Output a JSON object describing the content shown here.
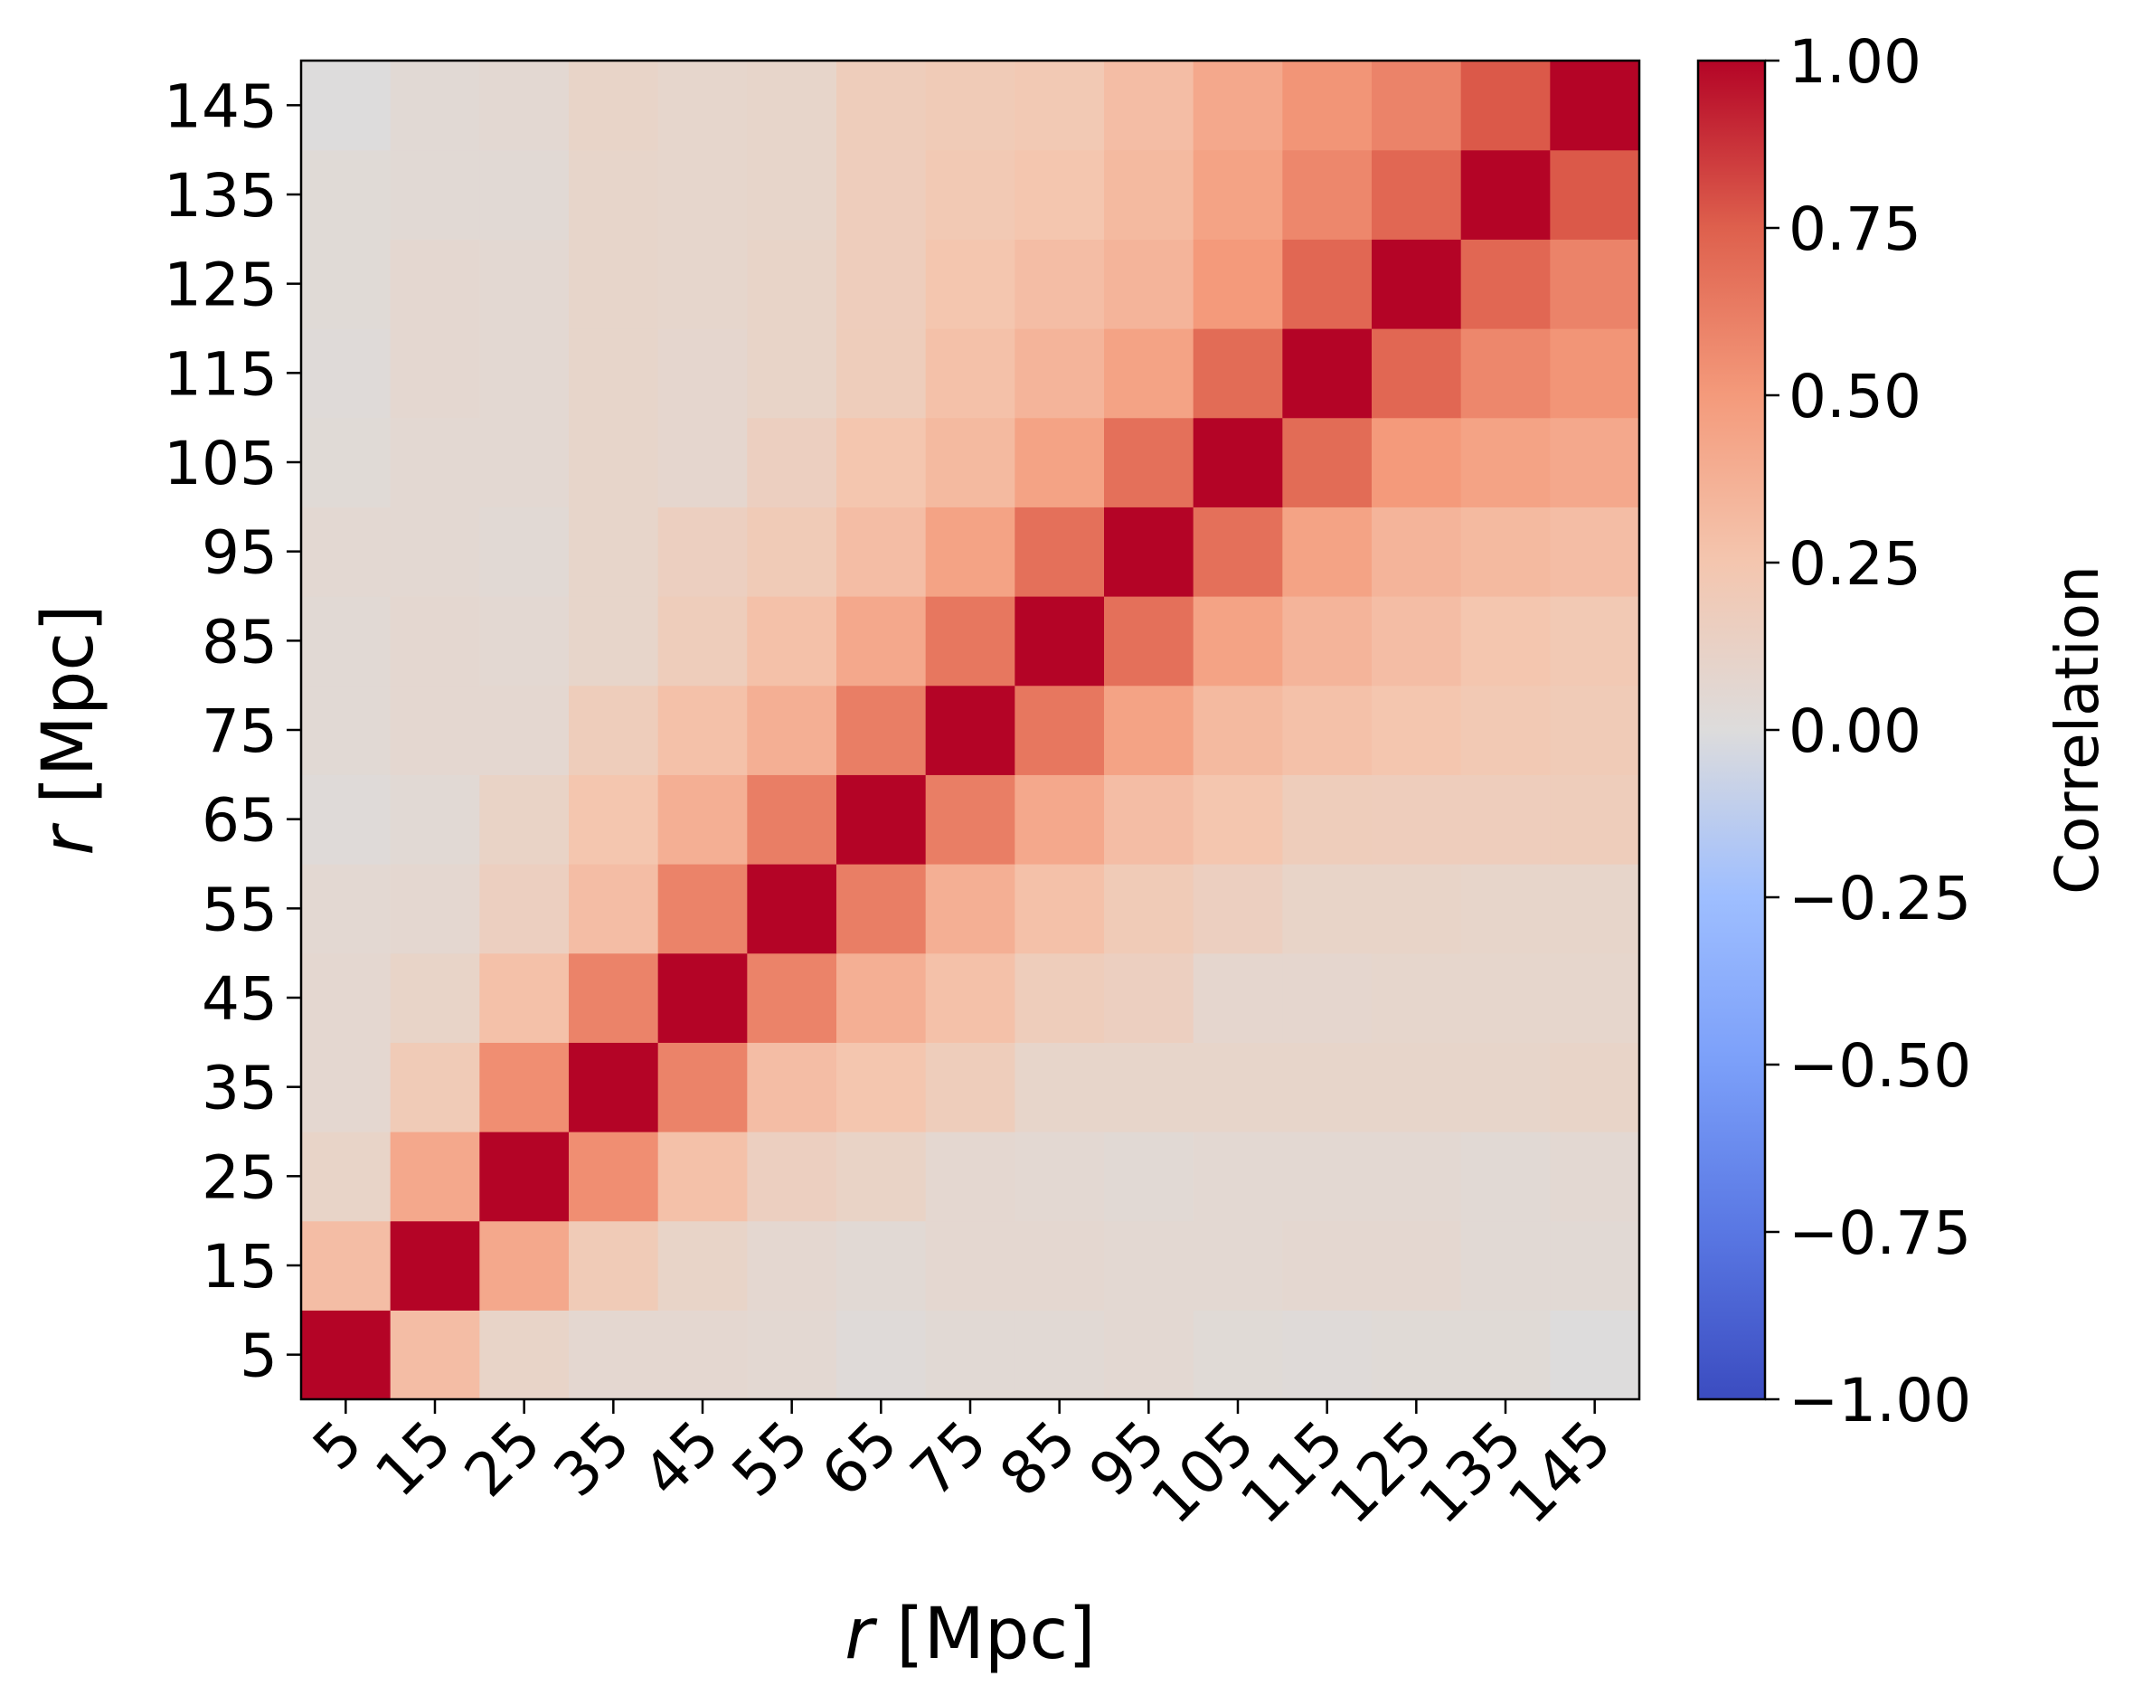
{
  "chart_data": {
    "type": "heatmap",
    "x_ticks": [
      "5",
      "15",
      "25",
      "35",
      "45",
      "55",
      "65",
      "75",
      "85",
      "95",
      "105",
      "115",
      "125",
      "135",
      "145"
    ],
    "y_ticks": [
      "5",
      "15",
      "25",
      "35",
      "45",
      "55",
      "65",
      "75",
      "85",
      "95",
      "105",
      "115",
      "125",
      "135",
      "145"
    ],
    "xlabel_var": "r",
    "xlabel_unit": "[Mpc]",
    "ylabel_var": "r",
    "ylabel_unit": "[Mpc]",
    "colorbar": {
      "label": "Correlation",
      "range": [
        -1.0,
        1.0
      ],
      "ticks": [
        "1.00",
        "0.75",
        "0.50",
        "0.25",
        "0.00",
        "−0.25",
        "−0.50",
        "−0.75",
        "−1.00"
      ],
      "tick_values": [
        1.0,
        0.75,
        0.5,
        0.25,
        0.0,
        -0.25,
        -0.5,
        -0.75,
        -1.0
      ],
      "colormap": "coolwarm"
    },
    "matrix": [
      [
        1.0,
        0.3,
        0.1,
        0.06,
        0.06,
        0.05,
        0.02,
        0.04,
        0.04,
        0.05,
        0.03,
        0.02,
        0.03,
        0.03,
        0.0
      ],
      [
        0.3,
        1.0,
        0.42,
        0.2,
        0.1,
        0.06,
        0.04,
        0.06,
        0.06,
        0.05,
        0.05,
        0.06,
        0.06,
        0.04,
        0.04
      ],
      [
        0.1,
        0.42,
        1.0,
        0.55,
        0.28,
        0.15,
        0.11,
        0.06,
        0.05,
        0.04,
        0.05,
        0.05,
        0.05,
        0.04,
        0.05
      ],
      [
        0.06,
        0.2,
        0.55,
        1.0,
        0.6,
        0.3,
        0.25,
        0.18,
        0.09,
        0.09,
        0.09,
        0.09,
        0.09,
        0.09,
        0.1
      ],
      [
        0.06,
        0.1,
        0.28,
        0.6,
        1.0,
        0.6,
        0.38,
        0.28,
        0.18,
        0.15,
        0.07,
        0.07,
        0.08,
        0.08,
        0.08
      ],
      [
        0.05,
        0.06,
        0.15,
        0.3,
        0.6,
        1.0,
        0.62,
        0.38,
        0.28,
        0.2,
        0.15,
        0.1,
        0.1,
        0.09,
        0.09
      ],
      [
        0.02,
        0.04,
        0.11,
        0.25,
        0.38,
        0.62,
        1.0,
        0.62,
        0.42,
        0.3,
        0.25,
        0.18,
        0.17,
        0.17,
        0.18
      ],
      [
        0.04,
        0.06,
        0.06,
        0.18,
        0.28,
        0.38,
        0.62,
        1.0,
        0.65,
        0.45,
        0.32,
        0.28,
        0.25,
        0.22,
        0.2
      ],
      [
        0.04,
        0.06,
        0.05,
        0.09,
        0.18,
        0.28,
        0.42,
        0.65,
        1.0,
        0.68,
        0.45,
        0.35,
        0.3,
        0.25,
        0.22
      ],
      [
        0.05,
        0.05,
        0.04,
        0.09,
        0.15,
        0.2,
        0.3,
        0.45,
        0.68,
        1.0,
        0.68,
        0.45,
        0.35,
        0.32,
        0.3
      ],
      [
        0.03,
        0.05,
        0.05,
        0.09,
        0.07,
        0.15,
        0.25,
        0.32,
        0.45,
        0.68,
        1.0,
        0.7,
        0.5,
        0.45,
        0.42
      ],
      [
        0.02,
        0.06,
        0.05,
        0.09,
        0.07,
        0.1,
        0.18,
        0.28,
        0.35,
        0.45,
        0.7,
        1.0,
        0.72,
        0.58,
        0.52
      ],
      [
        0.03,
        0.06,
        0.05,
        0.09,
        0.08,
        0.1,
        0.17,
        0.25,
        0.3,
        0.35,
        0.5,
        0.72,
        1.0,
        0.72,
        0.6
      ],
      [
        0.03,
        0.04,
        0.04,
        0.09,
        0.08,
        0.09,
        0.17,
        0.22,
        0.25,
        0.32,
        0.45,
        0.58,
        0.72,
        1.0,
        0.78
      ],
      [
        0.0,
        0.04,
        0.05,
        0.1,
        0.08,
        0.09,
        0.18,
        0.2,
        0.22,
        0.3,
        0.42,
        0.52,
        0.6,
        0.78,
        1.0
      ]
    ]
  }
}
